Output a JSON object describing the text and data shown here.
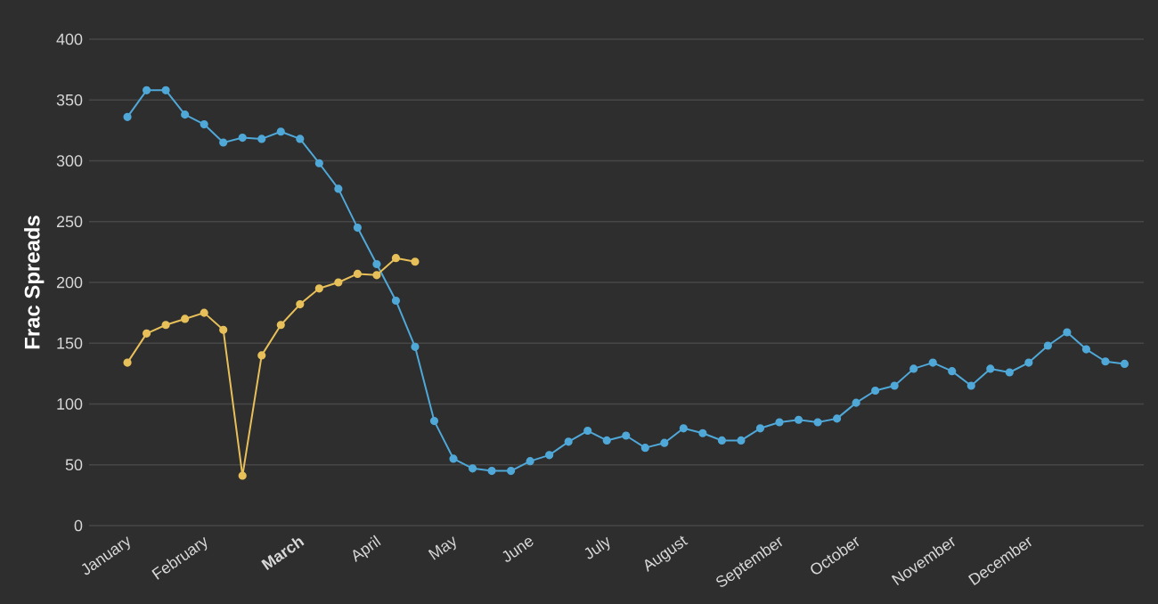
{
  "chart_data": {
    "type": "line",
    "ylabel": "Frac Spreads",
    "categories": [
      "January",
      null,
      null,
      null,
      "February",
      null,
      null,
      null,
      null,
      "**March**",
      null,
      null,
      null,
      "April",
      null,
      null,
      null,
      "May",
      null,
      null,
      null,
      "June",
      null,
      null,
      null,
      "July",
      null,
      null,
      null,
      "August",
      null,
      null,
      null,
      null,
      "September",
      null,
      null,
      null,
      "October",
      null,
      null,
      null,
      null,
      "November",
      null,
      null,
      null,
      "December",
      null,
      null,
      null,
      null,
      null
    ],
    "series": [
      {
        "color": "#4fa8d8",
        "values": [
          336,
          358,
          358,
          338,
          330,
          315,
          319,
          318,
          324,
          318,
          298,
          277,
          245,
          215,
          185,
          147,
          86,
          55,
          47,
          45,
          45,
          53,
          58,
          69,
          78,
          70,
          74,
          64,
          68,
          80,
          76,
          70,
          70,
          80,
          85,
          87,
          85,
          88,
          101,
          111,
          115,
          129,
          134,
          127,
          115,
          129,
          126,
          134,
          148,
          159,
          145,
          135,
          133
        ]
      },
      {
        "color": "#e8c05a",
        "values": [
          134,
          158,
          165,
          170,
          175,
          161,
          41,
          140,
          165,
          182,
          195,
          200,
          207,
          206,
          220,
          217,
          null,
          null,
          null,
          null,
          null,
          null,
          null,
          null,
          null,
          null,
          null,
          null,
          null,
          null,
          null,
          null,
          null,
          null,
          null,
          null,
          null,
          null,
          null,
          null,
          null,
          null,
          null,
          null,
          null,
          null,
          null,
          null,
          null,
          null,
          null,
          null,
          null
        ]
      }
    ],
    "ylim": [
      0,
      400
    ],
    "yticks": [
      0,
      50,
      100,
      150,
      200,
      250,
      300,
      350,
      400
    ],
    "grid": "y",
    "marker": "circle",
    "line_style": "solid"
  }
}
